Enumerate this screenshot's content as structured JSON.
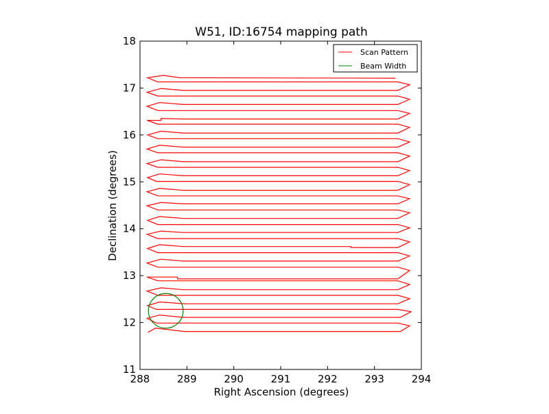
{
  "chart_data": {
    "type": "line",
    "title": "W51, ID:16754 mapping path",
    "xlabel": "Right Ascension (degrees)",
    "ylabel": "Declination (degrees)",
    "xlim": [
      288,
      294
    ],
    "ylim": [
      11,
      18
    ],
    "xticks": [
      288,
      289,
      290,
      291,
      292,
      293,
      294
    ],
    "yticks": [
      11,
      12,
      13,
      14,
      15,
      16,
      17,
      18
    ],
    "legend_position": "top-right",
    "series": [
      {
        "name": "Scan Pattern",
        "color": "#ff0000",
        "points": [
          [
            288.17,
            11.79
          ],
          [
            288.33,
            11.88
          ],
          [
            288.95,
            11.81
          ],
          [
            293.55,
            11.81
          ],
          [
            293.75,
            11.93
          ],
          [
            293.5,
            11.99
          ],
          [
            288.35,
            11.99
          ],
          [
            288.15,
            12.09
          ],
          [
            288.42,
            12.16
          ],
          [
            288.92,
            12.11
          ],
          [
            293.55,
            12.11
          ],
          [
            293.78,
            12.23
          ],
          [
            293.5,
            12.28
          ],
          [
            288.35,
            12.28
          ],
          [
            288.16,
            12.36
          ],
          [
            288.42,
            12.44
          ],
          [
            288.95,
            12.4
          ],
          [
            293.5,
            12.4
          ],
          [
            293.75,
            12.51
          ],
          [
            293.5,
            12.58
          ],
          [
            288.38,
            12.58
          ],
          [
            288.15,
            12.67
          ],
          [
            288.45,
            12.74
          ],
          [
            288.92,
            12.7
          ],
          [
            293.5,
            12.7
          ],
          [
            293.75,
            12.81
          ],
          [
            293.5,
            12.89
          ],
          [
            288.38,
            12.89
          ],
          [
            288.15,
            12.97
          ],
          [
            288.35,
            12.97
          ],
          [
            288.8,
            12.97
          ],
          [
            288.8,
            12.93
          ],
          [
            293.5,
            12.93
          ],
          [
            293.75,
            13.11
          ],
          [
            293.5,
            13.18
          ],
          [
            288.38,
            13.18
          ],
          [
            288.15,
            13.27
          ],
          [
            288.45,
            13.35
          ],
          [
            288.92,
            13.31
          ],
          [
            293.5,
            13.31
          ],
          [
            293.75,
            13.42
          ],
          [
            293.5,
            13.49
          ],
          [
            288.38,
            13.49
          ],
          [
            288.16,
            13.58
          ],
          [
            288.42,
            13.66
          ],
          [
            288.92,
            13.62
          ],
          [
            292.5,
            13.62
          ],
          [
            292.5,
            13.6
          ],
          [
            293.5,
            13.6
          ],
          [
            293.75,
            13.72
          ],
          [
            293.5,
            13.79
          ],
          [
            288.38,
            13.79
          ],
          [
            288.15,
            13.88
          ],
          [
            288.45,
            13.95
          ],
          [
            288.92,
            13.92
          ],
          [
            293.5,
            13.92
          ],
          [
            293.75,
            14.02
          ],
          [
            293.5,
            14.09
          ],
          [
            288.38,
            14.09
          ],
          [
            288.16,
            14.18
          ],
          [
            288.42,
            14.26
          ],
          [
            288.92,
            14.22
          ],
          [
            293.5,
            14.22
          ],
          [
            293.75,
            14.34
          ],
          [
            293.5,
            14.4
          ],
          [
            288.38,
            14.4
          ],
          [
            288.15,
            14.49
          ],
          [
            288.45,
            14.56
          ],
          [
            288.92,
            14.53
          ],
          [
            293.5,
            14.53
          ],
          [
            293.75,
            14.64
          ],
          [
            293.5,
            14.7
          ],
          [
            288.38,
            14.7
          ],
          [
            288.15,
            14.79
          ],
          [
            288.42,
            14.86
          ],
          [
            288.92,
            14.82
          ],
          [
            293.5,
            14.82
          ],
          [
            293.75,
            14.94
          ],
          [
            293.5,
            15.01
          ],
          [
            288.35,
            15.01
          ],
          [
            288.16,
            15.09
          ],
          [
            288.42,
            15.17
          ],
          [
            288.92,
            15.13
          ],
          [
            293.5,
            15.13
          ],
          [
            293.75,
            15.24
          ],
          [
            293.5,
            15.31
          ],
          [
            288.38,
            15.31
          ],
          [
            288.15,
            15.39
          ],
          [
            288.45,
            15.47
          ],
          [
            288.92,
            15.43
          ],
          [
            293.5,
            15.43
          ],
          [
            293.75,
            15.55
          ],
          [
            293.5,
            15.62
          ],
          [
            288.38,
            15.62
          ],
          [
            288.15,
            15.7
          ],
          [
            288.42,
            15.78
          ],
          [
            288.92,
            15.74
          ],
          [
            293.5,
            15.74
          ],
          [
            293.75,
            15.85
          ],
          [
            293.5,
            15.92
          ],
          [
            288.38,
            15.92
          ],
          [
            288.16,
            16.0
          ],
          [
            288.45,
            16.08
          ],
          [
            288.92,
            16.04
          ],
          [
            293.5,
            16.04
          ],
          [
            293.75,
            16.16
          ],
          [
            293.5,
            16.23
          ],
          [
            288.38,
            16.23
          ],
          [
            288.15,
            16.31
          ],
          [
            288.45,
            16.31
          ],
          [
            288.45,
            16.35
          ],
          [
            288.92,
            16.34
          ],
          [
            293.5,
            16.34
          ],
          [
            293.75,
            16.46
          ],
          [
            293.5,
            16.52
          ],
          [
            288.38,
            16.52
          ],
          [
            288.15,
            16.61
          ],
          [
            288.42,
            16.69
          ],
          [
            288.92,
            16.65
          ],
          [
            293.5,
            16.65
          ],
          [
            293.75,
            16.76
          ],
          [
            293.5,
            16.83
          ],
          [
            288.38,
            16.83
          ],
          [
            288.15,
            16.91
          ],
          [
            288.45,
            16.99
          ],
          [
            288.92,
            16.95
          ],
          [
            293.5,
            16.95
          ],
          [
            293.75,
            17.07
          ],
          [
            293.5,
            17.13
          ],
          [
            288.38,
            17.13
          ],
          [
            288.16,
            17.22
          ],
          [
            288.5,
            17.27
          ],
          [
            288.85,
            17.22
          ],
          [
            293.45,
            17.21
          ]
        ]
      },
      {
        "name": "Beam Width",
        "color": "#008000",
        "shape": "circle",
        "center": [
          288.55,
          12.25
        ],
        "radius": 0.37
      }
    ]
  }
}
